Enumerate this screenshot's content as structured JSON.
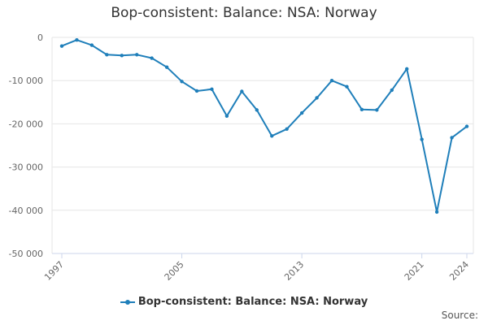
{
  "colors": {
    "series": "#1f7fba",
    "grid": "#e6e6e6",
    "axis": "#ccd6eb"
  },
  "chart_data": {
    "type": "line",
    "title": "Bop-consistent: Balance: NSA: Norway",
    "xlabel": "",
    "ylabel": "",
    "xlim": [
      1997,
      2024
    ],
    "ylim": [
      -50000,
      0
    ],
    "y_ticks": [
      0,
      -10000,
      -20000,
      -30000,
      -40000,
      -50000
    ],
    "y_tick_labels": [
      "0",
      "-10 000",
      "-20 000",
      "-30 000",
      "-40 000",
      "-50 000"
    ],
    "x_ticks": [
      1997,
      2005,
      2013,
      2021,
      2024
    ],
    "x_tick_labels": [
      "1997",
      "2005",
      "2013",
      "2021",
      "2024"
    ],
    "grid": true,
    "legend_position": "bottom-center",
    "series": [
      {
        "name": "Bop-consistent: Balance: NSA: Norway",
        "x": [
          1997,
          1998,
          1999,
          2000,
          2001,
          2002,
          2003,
          2004,
          2005,
          2006,
          2007,
          2008,
          2009,
          2010,
          2011,
          2012,
          2013,
          2014,
          2015,
          2016,
          2017,
          2018,
          2019,
          2020,
          2021,
          2022,
          2023,
          2024
        ],
        "values": [
          -2000,
          -600,
          -1800,
          -4000,
          -4200,
          -4000,
          -4800,
          -6900,
          -10200,
          -12400,
          -12000,
          -18200,
          -12500,
          -16800,
          -22800,
          -21200,
          -17500,
          -14000,
          -10000,
          -11400,
          -16700,
          -16800,
          -12200,
          -7300,
          -23600,
          -40400,
          -23200,
          -20600
        ]
      }
    ]
  },
  "legend": {
    "label": "Bop-consistent: Balance: NSA: Norway"
  },
  "source_label": "Source:"
}
